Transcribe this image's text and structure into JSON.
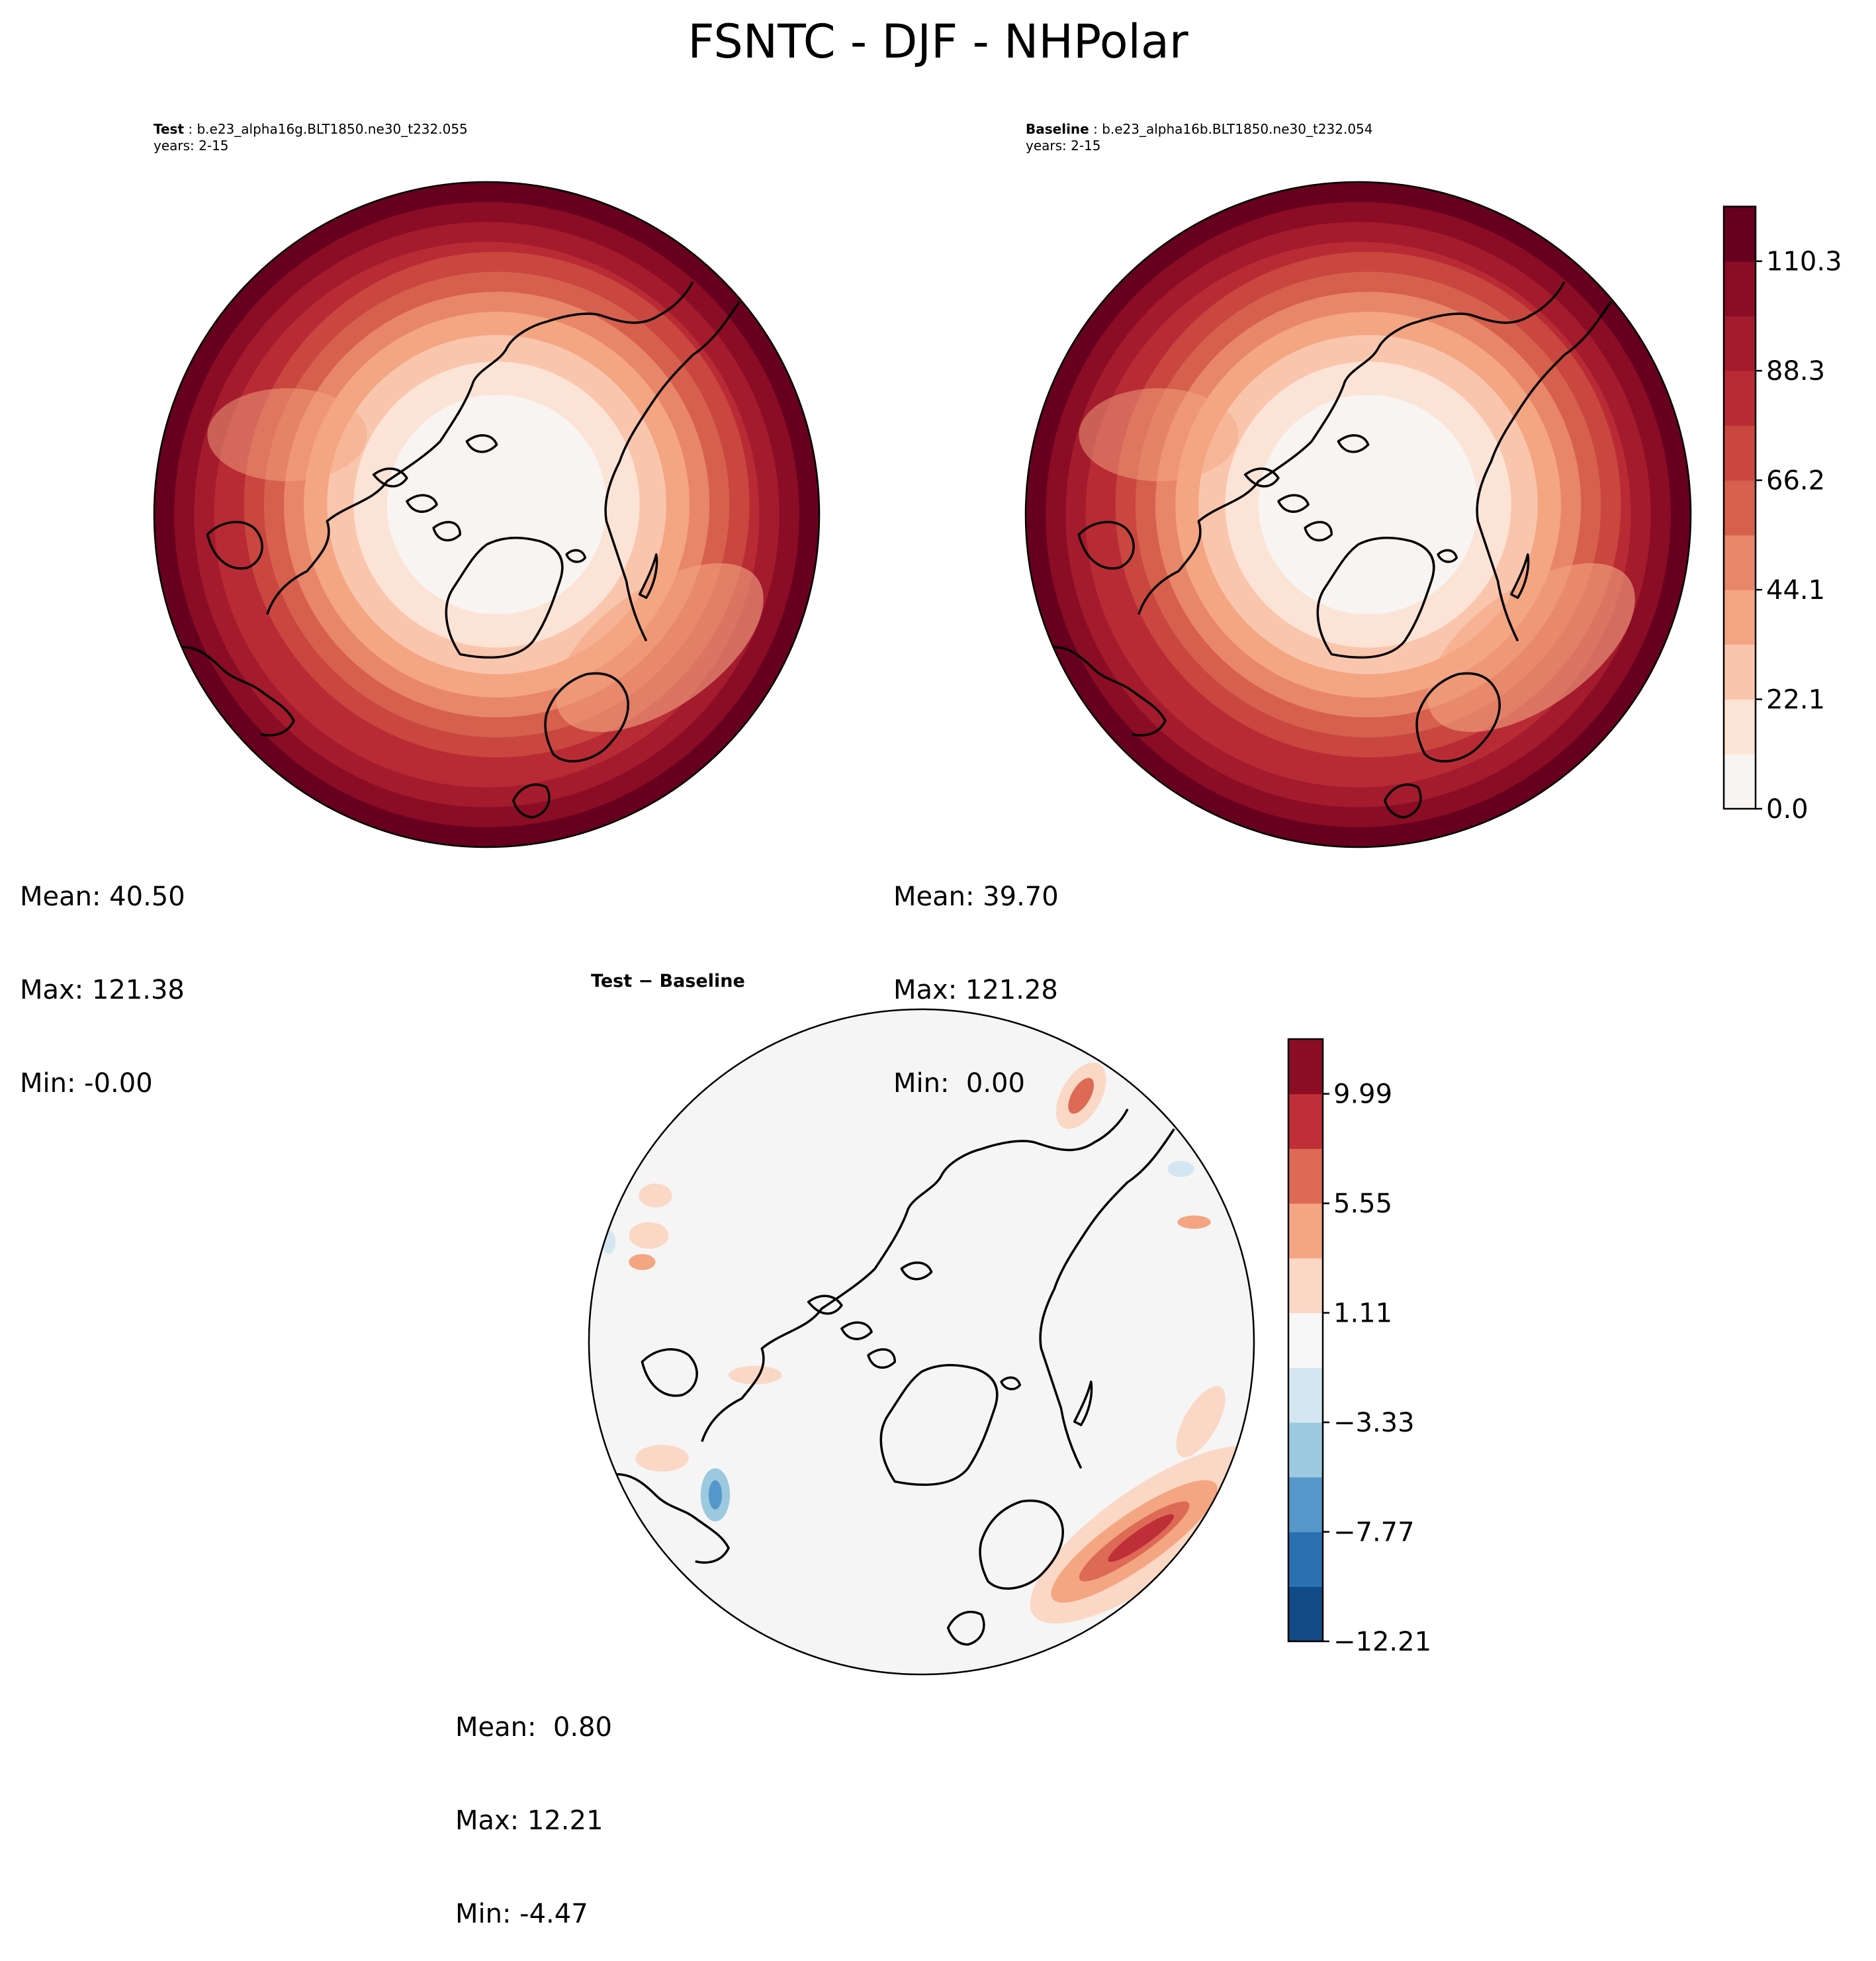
{
  "figure": {
    "title": "FSNTC - DJF - NHPolar"
  },
  "panels": {
    "test": {
      "label": "Test",
      "case": "b.e23_alpha16g.BLT1850.ne30_t232.055",
      "years": "years: 2-15",
      "stats": {
        "mean": "Mean: 40.50",
        "max": "Max: 121.38",
        "min": "Min: -0.00"
      }
    },
    "baseline": {
      "label": "Baseline",
      "case": "b.e23_alpha16b.BLT1850.ne30_t232.054",
      "years": "years: 2-15",
      "stats": {
        "mean": "Mean: 39.70",
        "max": "Max: 121.28",
        "min": "Min:  0.00"
      }
    },
    "diff": {
      "label": "Test − Baseline",
      "stats": {
        "mean": "Mean:  0.80",
        "max": "Max: 12.21",
        "min": "Min: -4.47"
      }
    }
  },
  "chart_data": [
    {
      "type": "heatmap",
      "panel": "test",
      "projection": "north polar stereographic",
      "colorbar": {
        "range": [
          0.0,
          121.38
        ],
        "ticks": [
          "0.0",
          "22.1",
          "44.1",
          "66.2",
          "88.3",
          "110.3"
        ],
        "colors": [
          "#f7f4f2",
          "#fbe3d6",
          "#f9c6ad",
          "#f4a582",
          "#e8866a",
          "#d6604d",
          "#c9473f",
          "#b92b34",
          "#a31b2d",
          "#8b0c25",
          "#67001f"
        ]
      },
      "mean": 40.5,
      "max": 121.38,
      "min": -0.0
    },
    {
      "type": "heatmap",
      "panel": "baseline",
      "projection": "north polar stereographic",
      "colorbar": "shared with test",
      "mean": 39.7,
      "max": 121.28,
      "min": 0.0
    },
    {
      "type": "heatmap",
      "panel": "diff",
      "projection": "north polar stereographic",
      "colorbar": {
        "range": [
          -12.21,
          12.21
        ],
        "ticks": [
          "−12.21",
          "−7.77",
          "−3.33",
          "1.11",
          "5.55",
          "9.99"
        ],
        "colors": [
          "#124a86",
          "#2a71b2",
          "#5597c8",
          "#9bc9e0",
          "#d4e6f1",
          "#f7f7f7",
          "#fbd8c5",
          "#f4a582",
          "#dd6a55",
          "#bf2f37",
          "#8c0d25"
        ]
      },
      "mean": 0.8,
      "max": 12.21,
      "min": -4.47
    }
  ]
}
